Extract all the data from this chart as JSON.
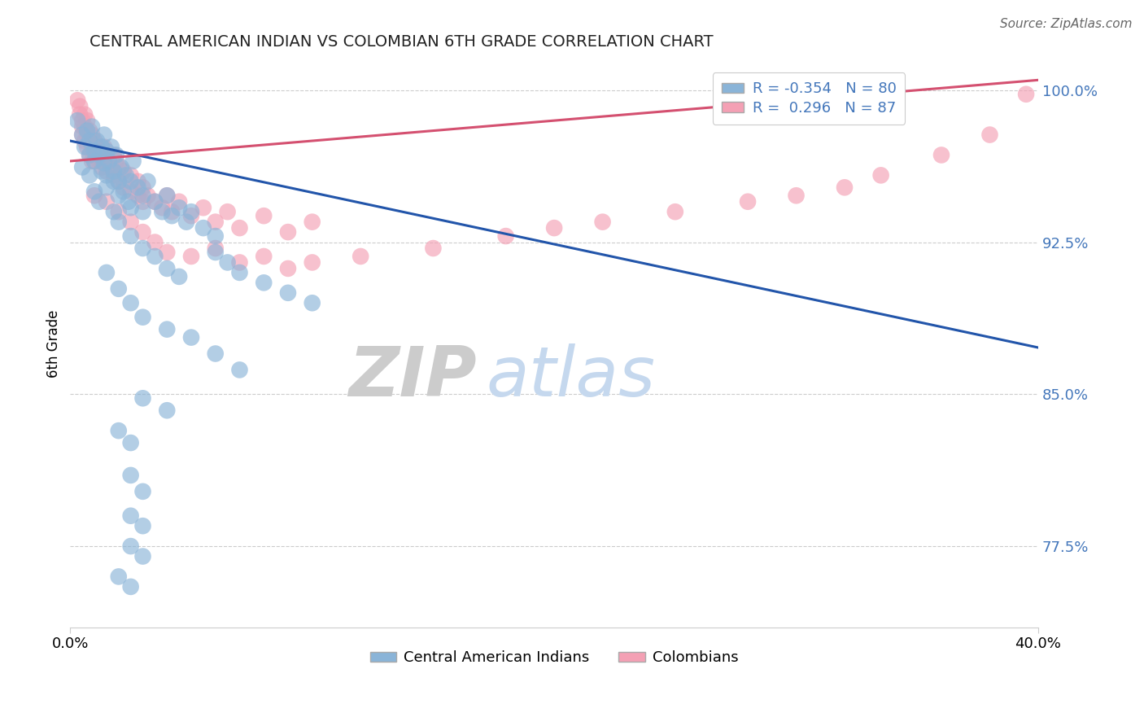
{
  "title": "CENTRAL AMERICAN INDIAN VS COLOMBIAN 6TH GRADE CORRELATION CHART",
  "source": "Source: ZipAtlas.com",
  "ylabel": "6th Grade",
  "xlim": [
    0.0,
    0.4
  ],
  "ylim": [
    0.735,
    1.015
  ],
  "blue_R": -0.354,
  "blue_N": 80,
  "pink_R": 0.296,
  "pink_N": 87,
  "blue_color": "#8ab4d8",
  "pink_color": "#f4a0b4",
  "blue_line_color": "#2255aa",
  "pink_line_color": "#d45070",
  "watermark_zip": "ZIP",
  "watermark_atlas": "atlas",
  "blue_line": [
    [
      0.0,
      0.975
    ],
    [
      0.4,
      0.873
    ]
  ],
  "pink_line": [
    [
      0.0,
      0.965
    ],
    [
      0.4,
      1.005
    ]
  ],
  "blue_dots": [
    [
      0.003,
      0.985
    ],
    [
      0.005,
      0.978
    ],
    [
      0.006,
      0.972
    ],
    [
      0.007,
      0.98
    ],
    [
      0.008,
      0.975
    ],
    [
      0.008,
      0.968
    ],
    [
      0.009,
      0.982
    ],
    [
      0.01,
      0.97
    ],
    [
      0.01,
      0.965
    ],
    [
      0.011,
      0.975
    ],
    [
      0.012,
      0.968
    ],
    [
      0.013,
      0.972
    ],
    [
      0.013,
      0.96
    ],
    [
      0.014,
      0.978
    ],
    [
      0.014,
      0.964
    ],
    [
      0.015,
      0.97
    ],
    [
      0.015,
      0.958
    ],
    [
      0.016,
      0.965
    ],
    [
      0.017,
      0.972
    ],
    [
      0.018,
      0.96
    ],
    [
      0.018,
      0.955
    ],
    [
      0.019,
      0.968
    ],
    [
      0.02,
      0.955
    ],
    [
      0.02,
      0.948
    ],
    [
      0.021,
      0.962
    ],
    [
      0.022,
      0.95
    ],
    [
      0.023,
      0.958
    ],
    [
      0.024,
      0.945
    ],
    [
      0.025,
      0.955
    ],
    [
      0.025,
      0.942
    ],
    [
      0.026,
      0.965
    ],
    [
      0.028,
      0.952
    ],
    [
      0.03,
      0.948
    ],
    [
      0.03,
      0.94
    ],
    [
      0.032,
      0.955
    ],
    [
      0.035,
      0.945
    ],
    [
      0.038,
      0.94
    ],
    [
      0.04,
      0.948
    ],
    [
      0.042,
      0.938
    ],
    [
      0.045,
      0.942
    ],
    [
      0.048,
      0.935
    ],
    [
      0.05,
      0.94
    ],
    [
      0.055,
      0.932
    ],
    [
      0.06,
      0.928
    ],
    [
      0.005,
      0.962
    ],
    [
      0.008,
      0.958
    ],
    [
      0.01,
      0.95
    ],
    [
      0.012,
      0.945
    ],
    [
      0.015,
      0.952
    ],
    [
      0.018,
      0.94
    ],
    [
      0.02,
      0.935
    ],
    [
      0.025,
      0.928
    ],
    [
      0.03,
      0.922
    ],
    [
      0.035,
      0.918
    ],
    [
      0.04,
      0.912
    ],
    [
      0.045,
      0.908
    ],
    [
      0.06,
      0.92
    ],
    [
      0.065,
      0.915
    ],
    [
      0.07,
      0.91
    ],
    [
      0.08,
      0.905
    ],
    [
      0.09,
      0.9
    ],
    [
      0.1,
      0.895
    ],
    [
      0.015,
      0.91
    ],
    [
      0.02,
      0.902
    ],
    [
      0.025,
      0.895
    ],
    [
      0.03,
      0.888
    ],
    [
      0.04,
      0.882
    ],
    [
      0.05,
      0.878
    ],
    [
      0.06,
      0.87
    ],
    [
      0.07,
      0.862
    ],
    [
      0.03,
      0.848
    ],
    [
      0.04,
      0.842
    ],
    [
      0.02,
      0.832
    ],
    [
      0.025,
      0.826
    ],
    [
      0.025,
      0.81
    ],
    [
      0.03,
      0.802
    ],
    [
      0.025,
      0.79
    ],
    [
      0.03,
      0.785
    ],
    [
      0.025,
      0.775
    ],
    [
      0.03,
      0.77
    ],
    [
      0.02,
      0.76
    ],
    [
      0.025,
      0.755
    ]
  ],
  "pink_dots": [
    [
      0.003,
      0.995
    ],
    [
      0.004,
      0.992
    ],
    [
      0.004,
      0.988
    ],
    [
      0.005,
      0.985
    ],
    [
      0.005,
      0.982
    ],
    [
      0.005,
      0.978
    ],
    [
      0.006,
      0.988
    ],
    [
      0.006,
      0.982
    ],
    [
      0.006,
      0.975
    ],
    [
      0.007,
      0.985
    ],
    [
      0.007,
      0.978
    ],
    [
      0.007,
      0.972
    ],
    [
      0.008,
      0.98
    ],
    [
      0.008,
      0.975
    ],
    [
      0.008,
      0.968
    ],
    [
      0.009,
      0.978
    ],
    [
      0.009,
      0.972
    ],
    [
      0.009,
      0.965
    ],
    [
      0.01,
      0.975
    ],
    [
      0.01,
      0.97
    ],
    [
      0.01,
      0.965
    ],
    [
      0.011,
      0.972
    ],
    [
      0.011,
      0.968
    ],
    [
      0.012,
      0.97
    ],
    [
      0.012,
      0.965
    ],
    [
      0.013,
      0.968
    ],
    [
      0.013,
      0.962
    ],
    [
      0.014,
      0.972
    ],
    [
      0.014,
      0.965
    ],
    [
      0.015,
      0.968
    ],
    [
      0.015,
      0.96
    ],
    [
      0.016,
      0.965
    ],
    [
      0.017,
      0.962
    ],
    [
      0.018,
      0.968
    ],
    [
      0.018,
      0.958
    ],
    [
      0.019,
      0.965
    ],
    [
      0.02,
      0.962
    ],
    [
      0.02,
      0.955
    ],
    [
      0.022,
      0.96
    ],
    [
      0.022,
      0.952
    ],
    [
      0.025,
      0.958
    ],
    [
      0.025,
      0.95
    ],
    [
      0.028,
      0.955
    ],
    [
      0.028,
      0.948
    ],
    [
      0.03,
      0.952
    ],
    [
      0.03,
      0.945
    ],
    [
      0.032,
      0.948
    ],
    [
      0.035,
      0.945
    ],
    [
      0.038,
      0.942
    ],
    [
      0.04,
      0.948
    ],
    [
      0.042,
      0.94
    ],
    [
      0.045,
      0.945
    ],
    [
      0.05,
      0.938
    ],
    [
      0.055,
      0.942
    ],
    [
      0.06,
      0.935
    ],
    [
      0.065,
      0.94
    ],
    [
      0.07,
      0.932
    ],
    [
      0.08,
      0.938
    ],
    [
      0.09,
      0.93
    ],
    [
      0.1,
      0.935
    ],
    [
      0.01,
      0.948
    ],
    [
      0.015,
      0.945
    ],
    [
      0.02,
      0.94
    ],
    [
      0.025,
      0.935
    ],
    [
      0.03,
      0.93
    ],
    [
      0.035,
      0.925
    ],
    [
      0.04,
      0.92
    ],
    [
      0.05,
      0.918
    ],
    [
      0.06,
      0.922
    ],
    [
      0.07,
      0.915
    ],
    [
      0.08,
      0.918
    ],
    [
      0.09,
      0.912
    ],
    [
      0.1,
      0.915
    ],
    [
      0.12,
      0.918
    ],
    [
      0.15,
      0.922
    ],
    [
      0.18,
      0.928
    ],
    [
      0.2,
      0.932
    ],
    [
      0.22,
      0.935
    ],
    [
      0.25,
      0.94
    ],
    [
      0.28,
      0.945
    ],
    [
      0.3,
      0.948
    ],
    [
      0.32,
      0.952
    ],
    [
      0.335,
      0.958
    ],
    [
      0.36,
      0.968
    ],
    [
      0.38,
      0.978
    ],
    [
      0.395,
      0.998
    ]
  ]
}
